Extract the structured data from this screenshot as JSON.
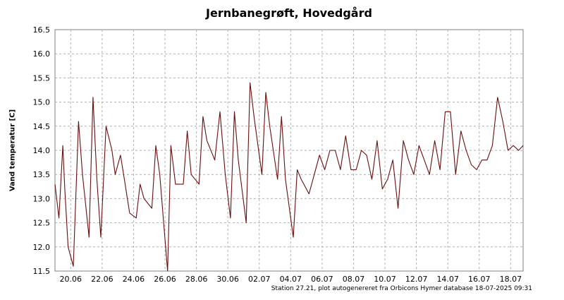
{
  "chart_data": {
    "type": "line",
    "title": "Jernbanegrøft, Hovedgård",
    "ylabel": "Vand temperatur [C]",
    "xlabel": "",
    "footer": "Station 27.21, plot autogenereret fra Orbicons Hymer database 18-07-2025 09:31",
    "ylim": [
      11.5,
      16.5
    ],
    "xlim": [
      "2025-06-19",
      "2025-07-18T19:00"
    ],
    "yticks": [
      "11.5",
      "12.0",
      "12.5",
      "13.0",
      "13.5",
      "14.0",
      "14.5",
      "15.0",
      "15.5",
      "16.0",
      "16.5"
    ],
    "xticks": [
      "20.06",
      "22.06",
      "24.06",
      "26.06",
      "28.06",
      "30.06",
      "02.07",
      "04.07",
      "06.07",
      "08.07",
      "10.07",
      "12.07",
      "14.07",
      "16.07",
      "18.07"
    ],
    "grid": true,
    "line_color": "#6b0d0d",
    "series": [
      {
        "x": [
          "2025-06-19T00:00",
          "2025-06-19T06:00",
          "2025-06-19T12:00",
          "2025-06-19T15:00",
          "2025-06-19T20:00",
          "2025-06-20T04:00",
          "2025-06-20T12:00",
          "2025-06-20T18:00",
          "2025-06-21T04:00",
          "2025-06-21T10:00",
          "2025-06-21T16:00",
          "2025-06-21T22:00",
          "2025-06-22T06:00",
          "2025-06-22T15:00",
          "2025-06-22T20:00",
          "2025-06-23T04:00",
          "2025-06-23T10:00",
          "2025-06-23T18:00",
          "2025-06-24T04:00",
          "2025-06-24T10:00",
          "2025-06-24T16:00",
          "2025-06-25T04:00",
          "2025-06-25T10:00",
          "2025-06-25T16:00",
          "2025-06-26T04:00",
          "2025-06-26T09:00",
          "2025-06-26T16:00",
          "2025-06-27T04:00",
          "2025-06-27T10:00",
          "2025-06-27T16:00",
          "2025-06-28T04:00",
          "2025-06-28T10:00",
          "2025-06-28T16:00",
          "2025-06-29T04:00",
          "2025-06-29T12:00",
          "2025-06-29T20:00",
          "2025-06-30T04:00",
          "2025-06-30T10:00",
          "2025-06-30T16:00",
          "2025-07-01T04:00",
          "2025-07-01T10:00",
          "2025-07-01T16:00",
          "2025-07-02T04:00",
          "2025-07-02T10:00",
          "2025-07-02T16:00",
          "2025-07-03T04:00",
          "2025-07-03T10:00",
          "2025-07-03T16:00",
          "2025-07-04T04:00",
          "2025-07-04T10:00",
          "2025-07-04T16:00",
          "2025-07-05T04:00",
          "2025-07-05T12:00",
          "2025-07-05T20:00",
          "2025-07-06T04:00",
          "2025-07-06T12:00",
          "2025-07-06T20:00",
          "2025-07-07T04:00",
          "2025-07-07T12:00",
          "2025-07-07T20:00",
          "2025-07-08T04:00",
          "2025-07-08T12:00",
          "2025-07-08T20:00",
          "2025-07-09T04:00",
          "2025-07-09T12:00",
          "2025-07-09T20:00",
          "2025-07-10T04:00",
          "2025-07-10T12:00",
          "2025-07-10T20:00",
          "2025-07-11T04:00",
          "2025-07-11T12:00",
          "2025-07-11T20:00",
          "2025-07-12T04:00",
          "2025-07-12T12:00",
          "2025-07-12T20:00",
          "2025-07-13T04:00",
          "2025-07-13T12:00",
          "2025-07-13T20:00",
          "2025-07-14T04:00",
          "2025-07-14T12:00",
          "2025-07-14T20:00",
          "2025-07-15T04:00",
          "2025-07-15T12:00",
          "2025-07-15T20:00",
          "2025-07-16T04:00",
          "2025-07-16T12:00",
          "2025-07-16T20:00",
          "2025-07-17T04:00",
          "2025-07-17T12:00",
          "2025-07-17T20:00",
          "2025-07-18T04:00",
          "2025-07-18T12:00",
          "2025-07-18T19:00"
        ],
        "y": [
          13.3,
          12.6,
          14.1,
          13.2,
          12.0,
          11.6,
          14.6,
          13.5,
          12.2,
          15.1,
          13.4,
          12.2,
          14.5,
          14.0,
          13.5,
          13.9,
          13.4,
          12.7,
          12.6,
          13.3,
          13.0,
          12.8,
          14.1,
          13.5,
          11.5,
          14.1,
          13.3,
          13.3,
          14.4,
          13.5,
          13.3,
          14.7,
          14.2,
          13.8,
          14.8,
          13.5,
          12.6,
          14.8,
          13.8,
          12.5,
          15.4,
          14.7,
          13.5,
          15.2,
          14.5,
          13.4,
          14.7,
          13.4,
          12.2,
          13.6,
          13.4,
          13.1,
          13.5,
          13.9,
          13.6,
          14.0,
          14.0,
          13.6,
          14.3,
          13.6,
          13.6,
          14.0,
          13.9,
          13.4,
          14.2,
          13.2,
          13.4,
          13.8,
          12.8,
          14.2,
          13.8,
          13.5,
          14.1,
          13.8,
          13.5,
          14.2,
          13.6,
          14.8,
          14.8,
          13.5,
          14.4,
          14.0,
          13.7,
          13.6,
          13.8,
          13.8,
          14.1,
          15.1,
          14.6,
          14.0,
          14.1,
          14.0,
          14.1
        ]
      }
    ]
  }
}
